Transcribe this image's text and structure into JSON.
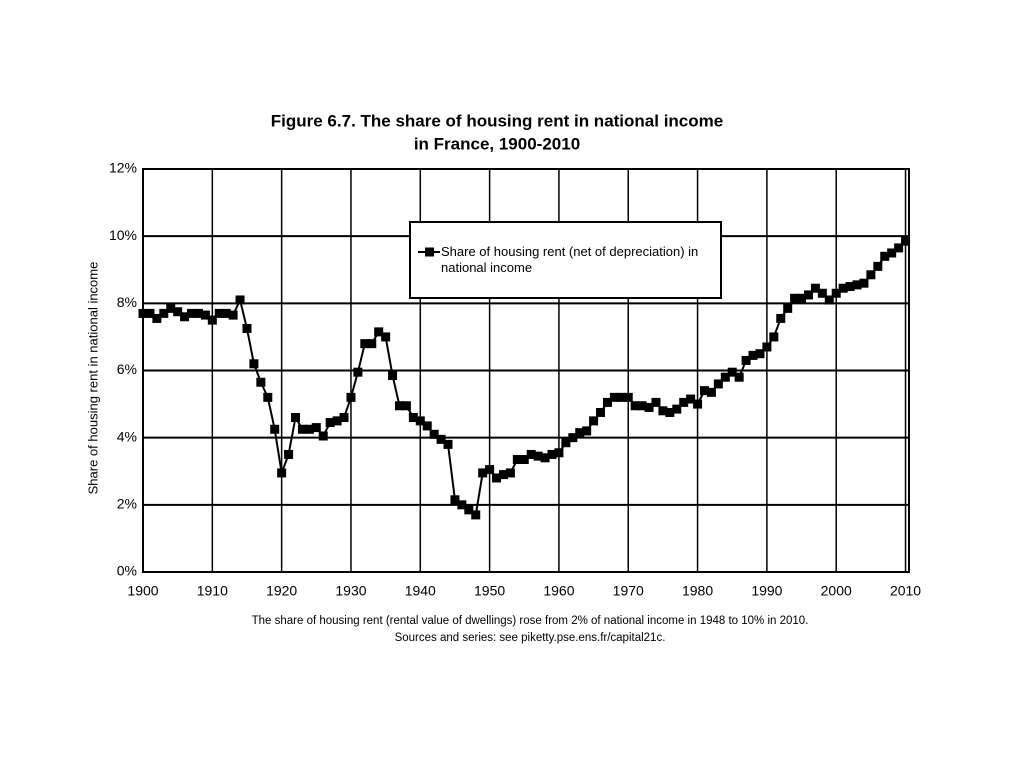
{
  "chart_data": {
    "type": "line",
    "title": [
      "Figure 6.7. The share of housing rent in national income",
      "in France, 1900-2010"
    ],
    "y_label": "Share of housing rent in national income",
    "notes": [
      "The share of housing rent (rental value of dwellings) rose from 2% of national income in 1948 to 10% in 2010.",
      "Sources and series: see piketty.pse.ens.fr/capital21c."
    ],
    "x": [
      1900,
      1901,
      1902,
      1903,
      1904,
      1905,
      1906,
      1907,
      1908,
      1909,
      1910,
      1911,
      1912,
      1913,
      1914,
      1915,
      1916,
      1917,
      1918,
      1919,
      1920,
      1921,
      1922,
      1923,
      1924,
      1925,
      1926,
      1927,
      1928,
      1929,
      1930,
      1931,
      1932,
      1933,
      1934,
      1935,
      1936,
      1937,
      1938,
      1939,
      1940,
      1941,
      1942,
      1943,
      1944,
      1945,
      1946,
      1947,
      1948,
      1949,
      1950,
      1951,
      1952,
      1953,
      1954,
      1955,
      1956,
      1957,
      1958,
      1959,
      1960,
      1961,
      1962,
      1963,
      1964,
      1965,
      1966,
      1967,
      1968,
      1969,
      1970,
      1971,
      1972,
      1973,
      1974,
      1975,
      1976,
      1977,
      1978,
      1979,
      1980,
      1981,
      1982,
      1983,
      1984,
      1985,
      1986,
      1987,
      1988,
      1989,
      1990,
      1991,
      1992,
      1993,
      1994,
      1995,
      1996,
      1997,
      1998,
      1999,
      2000,
      2001,
      2002,
      2003,
      2004,
      2005,
      2006,
      2007,
      2008,
      2009,
      2010
    ],
    "series": [
      {
        "name": "Share of housing rent (net of depreciation) in national income",
        "color": "#000000",
        "values": [
          7.7,
          7.7,
          7.55,
          7.7,
          7.85,
          7.75,
          7.6,
          7.7,
          7.7,
          7.65,
          7.5,
          7.7,
          7.7,
          7.65,
          8.1,
          7.25,
          6.2,
          5.65,
          5.2,
          4.25,
          2.95,
          3.5,
          4.6,
          4.25,
          4.25,
          4.3,
          4.05,
          4.45,
          4.5,
          4.6,
          5.2,
          5.95,
          6.8,
          6.8,
          7.15,
          7.0,
          5.85,
          4.95,
          4.95,
          4.6,
          4.5,
          4.35,
          4.1,
          3.95,
          3.8,
          2.15,
          2.0,
          1.85,
          1.7,
          2.95,
          3.05,
          2.8,
          2.9,
          2.95,
          3.35,
          3.35,
          3.5,
          3.45,
          3.4,
          3.5,
          3.55,
          3.85,
          4.0,
          4.15,
          4.2,
          4.5,
          4.75,
          5.05,
          5.2,
          5.2,
          5.2,
          4.95,
          4.95,
          4.9,
          5.05,
          4.8,
          4.75,
          4.85,
          5.05,
          5.15,
          5.0,
          5.4,
          5.35,
          5.6,
          5.8,
          5.95,
          5.8,
          6.3,
          6.45,
          6.5,
          6.7,
          7.0,
          7.55,
          7.85,
          8.15,
          8.15,
          8.25,
          8.45,
          8.3,
          8.1,
          8.3,
          8.45,
          8.5,
          8.55,
          8.6,
          8.85,
          9.1,
          9.4,
          9.5,
          9.65,
          9.85
        ]
      }
    ],
    "xlim": [
      1900,
      2010.5
    ],
    "xticks": [
      1900,
      1910,
      1920,
      1930,
      1940,
      1950,
      1960,
      1970,
      1980,
      1990,
      2000,
      2010
    ],
    "ylim": [
      0,
      12
    ],
    "yticks": [
      {
        "value": 0,
        "label": "0%"
      },
      {
        "value": 2,
        "label": "2%"
      },
      {
        "value": 4,
        "label": "4%"
      },
      {
        "value": 6,
        "label": "6%"
      },
      {
        "value": 8,
        "label": "8%"
      },
      {
        "value": 10,
        "label": "10%"
      },
      {
        "value": 12,
        "label": "12%"
      }
    ],
    "grid": true,
    "legend": "top-center"
  }
}
